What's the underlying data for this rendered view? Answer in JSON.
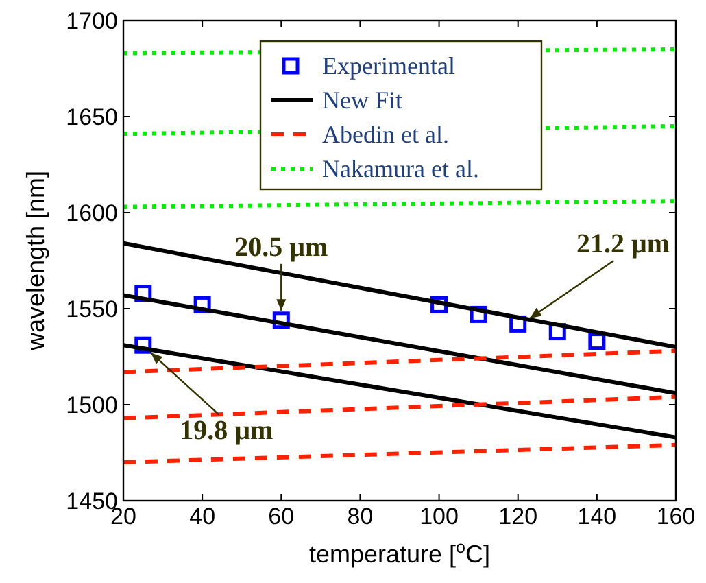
{
  "chart_data": {
    "type": "line",
    "xlabel": "temperature [$^{o}$C]",
    "ylabel": "wavelength [nm]",
    "xlim": [
      20,
      160
    ],
    "ylim": [
      1450,
      1700
    ],
    "xticks": [
      20,
      40,
      60,
      80,
      100,
      120,
      140,
      160
    ],
    "yticks": [
      1450,
      1500,
      1550,
      1600,
      1650,
      1700
    ],
    "grid": false,
    "legend": "top",
    "series": [
      {
        "name": "Experimental",
        "type": "scatter",
        "marker": "square",
        "color": "#0000ff",
        "x": [
          25,
          25,
          40,
          60,
          100,
          110,
          120,
          130,
          140
        ],
        "values": [
          1558,
          1531,
          1552,
          1544,
          1552,
          1547,
          1542,
          1538,
          1533
        ]
      },
      {
        "name": "New Fit",
        "line_style": "solid",
        "color": "#000000",
        "x": [
          20,
          160
        ],
        "values": [
          1584,
          1530
        ]
      },
      {
        "line_style": "solid",
        "color": "#000000",
        "x": [
          20,
          160
        ],
        "values": [
          1557,
          1506
        ]
      },
      {
        "line_style": "solid",
        "color": "#000000",
        "x": [
          20,
          160
        ],
        "values": [
          1531,
          1483
        ]
      },
      {
        "name": "Abedin et al.",
        "line_style": "dashed",
        "color": "#ff2200",
        "x": [
          20,
          160
        ],
        "values": [
          1517,
          1528
        ]
      },
      {
        "line_style": "dashed",
        "color": "#ff2200",
        "x": [
          20,
          160
        ],
        "values": [
          1493,
          1504
        ]
      },
      {
        "line_style": "dashed",
        "color": "#ff2200",
        "x": [
          20,
          160
        ],
        "values": [
          1470,
          1479
        ]
      },
      {
        "name": "Nakamura et al.",
        "line_style": "dotted",
        "color": "#00ee00",
        "x": [
          20,
          160
        ],
        "values": [
          1683,
          1685
        ]
      },
      {
        "line_style": "dotted",
        "color": "#00ee00",
        "x": [
          20,
          160
        ],
        "values": [
          1641,
          1645
        ]
      },
      {
        "line_style": "dotted",
        "color": "#00ee00",
        "x": [
          20,
          160
        ],
        "values": [
          1603,
          1606
        ]
      }
    ],
    "annotations": [
      {
        "text": "20.5 μm",
        "x": 60,
        "y": 1549
      },
      {
        "text": "21.2 μm",
        "x": 123,
        "y": 1545
      },
      {
        "text": "19.8 μm",
        "x": 27,
        "y": 1527
      }
    ]
  }
}
